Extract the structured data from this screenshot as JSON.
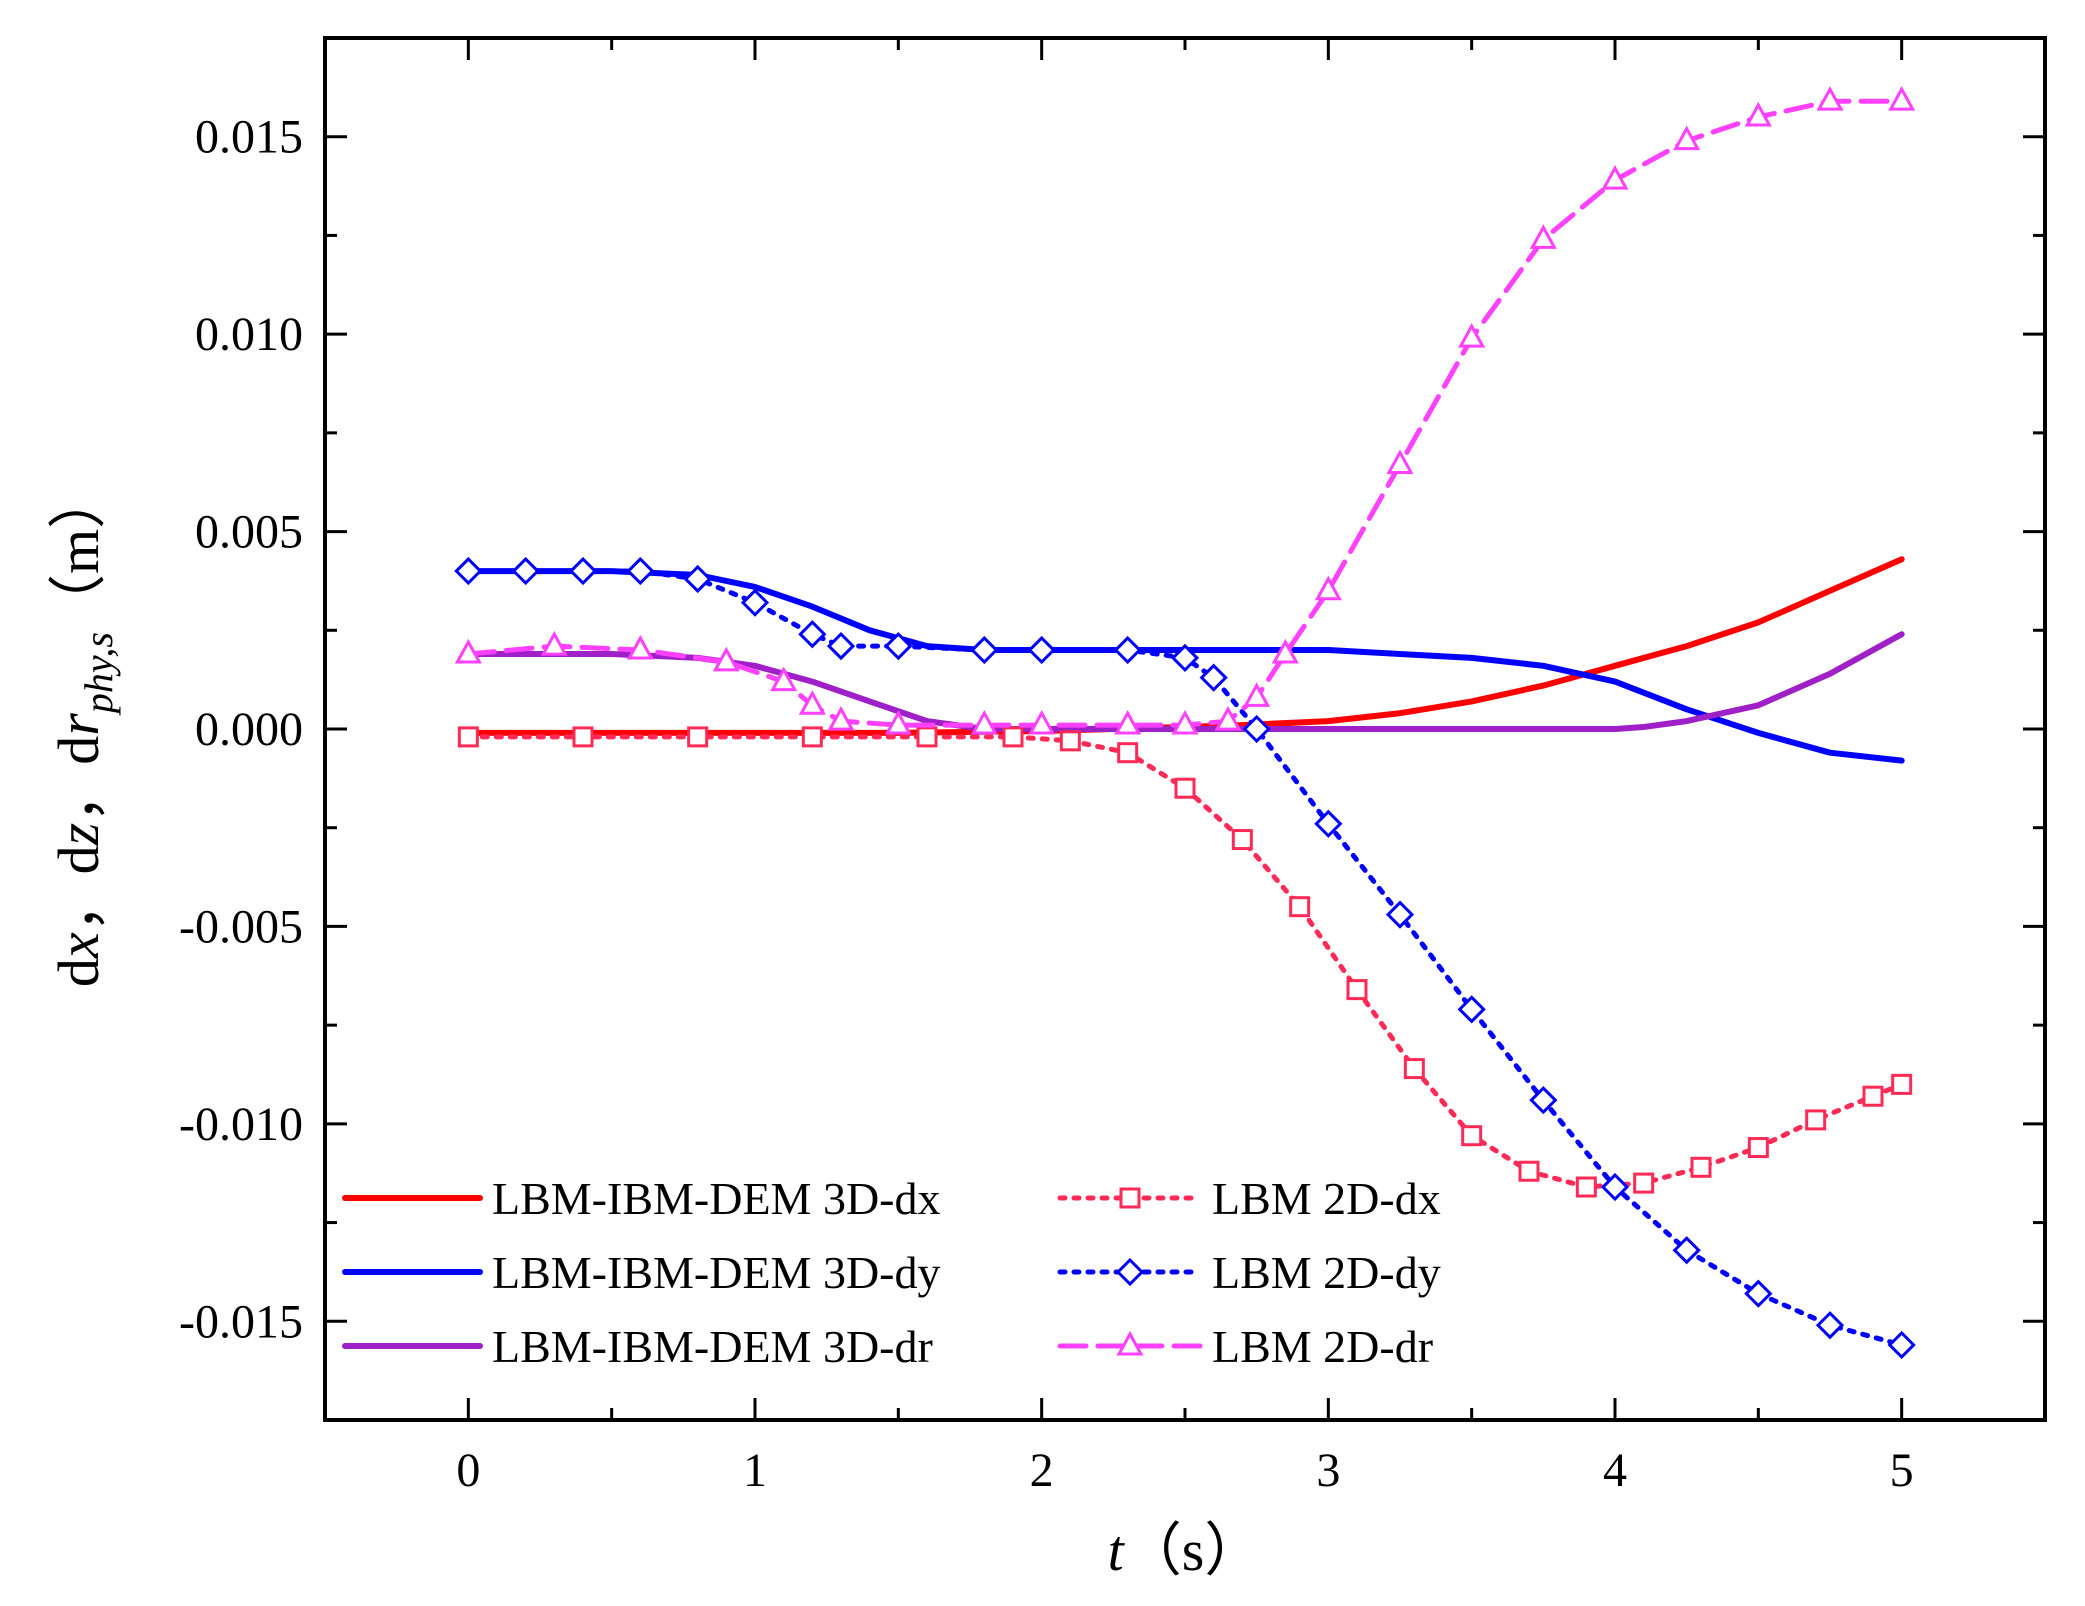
{
  "chart_data": {
    "type": "line",
    "title": "",
    "xlabel": {
      "var": "t",
      "unit": "（s）"
    },
    "ylabel": {
      "parts": [
        "dx",
        "，",
        "dz",
        "，",
        "dr"
      ],
      "subscript": "phy,s",
      "unit": "（m）"
    },
    "xlim": [
      -0.5,
      5.5
    ],
    "ylim": [
      -0.0175,
      0.0175
    ],
    "xticks": [
      0,
      1,
      2,
      3,
      4,
      5
    ],
    "xtick_labels": [
      "0",
      "1",
      "2",
      "3",
      "4",
      "5"
    ],
    "yticks": [
      -0.015,
      -0.01,
      -0.005,
      0.0,
      0.005,
      0.01,
      0.015
    ],
    "ytick_labels": [
      "-0.015",
      "-0.010",
      "-0.005",
      "0.000",
      "0.005",
      "0.010",
      "0.015"
    ],
    "grid": false,
    "legend_position": "bottom-left",
    "series": [
      {
        "name": "LBM-IBM-DEM 3D-dx",
        "style": "solid",
        "marker": "none",
        "color": "#ff0000",
        "x": [
          0,
          0.5,
          1,
          1.5,
          2,
          2.5,
          2.7,
          3,
          3.25,
          3.5,
          3.75,
          4,
          4.25,
          4.5,
          4.75,
          5
        ],
        "y": [
          -0.0001,
          -0.0001,
          -0.0001,
          -0.0001,
          -5e-05,
          5e-05,
          0.0001,
          0.0002,
          0.0004,
          0.0007,
          0.0011,
          0.0016,
          0.0021,
          0.0027,
          0.0035,
          0.0043
        ]
      },
      {
        "name": "LBM-IBM-DEM 3D-dy",
        "style": "solid",
        "marker": "none",
        "color": "#0000ff",
        "x": [
          0,
          0.5,
          0.8,
          1,
          1.2,
          1.4,
          1.6,
          1.8,
          2,
          2.5,
          3,
          3.25,
          3.5,
          3.75,
          4,
          4.25,
          4.5,
          4.75,
          5
        ],
        "y": [
          0.004,
          0.004,
          0.0039,
          0.0036,
          0.0031,
          0.0025,
          0.0021,
          0.002,
          0.002,
          0.002,
          0.002,
          0.0019,
          0.0018,
          0.0016,
          0.0012,
          0.0005,
          -0.0001,
          -0.0006,
          -0.0008
        ]
      },
      {
        "name": "LBM-IBM-DEM 3D-dr",
        "style": "solid",
        "marker": "none",
        "color": "#a020c8",
        "x": [
          0,
          0.5,
          0.8,
          1,
          1.2,
          1.4,
          1.6,
          1.8,
          2,
          3,
          3.5,
          4,
          4.1,
          4.25,
          4.5,
          4.75,
          5
        ],
        "y": [
          0.0019,
          0.0019,
          0.0018,
          0.0016,
          0.0012,
          0.0007,
          0.0002,
          0.0,
          0.0,
          0.0,
          0.0,
          0.0,
          5e-05,
          0.0002,
          0.0006,
          0.0014,
          0.0024
        ]
      },
      {
        "name": "LBM 2D-dx",
        "style": "dotted",
        "marker": "square",
        "color": "#ff2a55",
        "x": [
          0,
          0.4,
          0.8,
          1.2,
          1.6,
          1.9,
          2.1,
          2.3,
          2.5,
          2.7,
          2.9,
          3.1,
          3.3,
          3.5,
          3.7,
          3.9,
          4.1,
          4.3,
          4.5,
          4.7,
          4.9,
          5
        ],
        "y": [
          -0.0002,
          -0.0002,
          -0.0002,
          -0.0002,
          -0.0002,
          -0.0002,
          -0.0003,
          -0.0006,
          -0.0015,
          -0.0028,
          -0.0045,
          -0.0066,
          -0.0086,
          -0.0103,
          -0.0112,
          -0.0116,
          -0.0115,
          -0.0111,
          -0.0106,
          -0.0099,
          -0.0093,
          -0.009
        ]
      },
      {
        "name": "LBM 2D-dy",
        "style": "dotted",
        "marker": "diamond",
        "color": "#0000ff",
        "x": [
          0,
          0.2,
          0.4,
          0.6,
          0.8,
          1,
          1.2,
          1.3,
          1.5,
          1.8,
          2,
          2.3,
          2.5,
          2.6,
          2.75,
          3,
          3.25,
          3.5,
          3.75,
          4,
          4.25,
          4.5,
          4.75,
          5
        ],
        "y": [
          0.004,
          0.004,
          0.004,
          0.004,
          0.0038,
          0.0032,
          0.0024,
          0.0021,
          0.0021,
          0.002,
          0.002,
          0.002,
          0.0018,
          0.0013,
          0.0,
          -0.0024,
          -0.0047,
          -0.0071,
          -0.0094,
          -0.0116,
          -0.0132,
          -0.0143,
          -0.0151,
          -0.0156
        ]
      },
      {
        "name": "LBM 2D-dr",
        "style": "dashed",
        "marker": "triangle",
        "color": "#ff40ff",
        "x": [
          0,
          0.3,
          0.6,
          0.9,
          1.1,
          1.2,
          1.3,
          1.5,
          1.8,
          2,
          2.3,
          2.5,
          2.65,
          2.75,
          2.85,
          3,
          3.25,
          3.5,
          3.75,
          4,
          4.25,
          4.5,
          4.75,
          5
        ],
        "y": [
          0.0019,
          0.0021,
          0.002,
          0.0017,
          0.0012,
          0.0006,
          0.0002,
          0.0001,
          0.0001,
          0.0001,
          0.0001,
          0.0001,
          0.0002,
          0.0008,
          0.0019,
          0.0035,
          0.0067,
          0.0099,
          0.0124,
          0.0139,
          0.0149,
          0.0155,
          0.0159,
          0.0159
        ]
      }
    ]
  }
}
